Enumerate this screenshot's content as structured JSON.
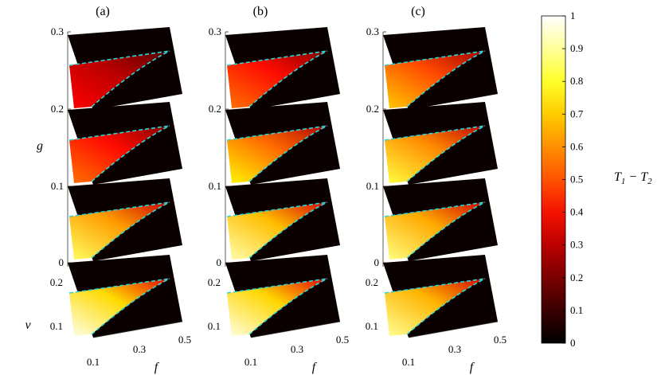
{
  "chart_data": {
    "type": "heatmap",
    "panels": [
      {
        "label": "(a)",
        "slice_intensity": [
          0.38,
          0.55,
          0.85,
          0.98
        ]
      },
      {
        "label": "(b)",
        "slice_intensity": [
          0.55,
          0.75,
          0.92,
          0.97
        ]
      },
      {
        "label": "(c)",
        "slice_intensity": [
          0.68,
          0.82,
          0.88,
          0.9
        ]
      }
    ],
    "g_axis": {
      "label": "g",
      "ticks": [
        "0",
        "0.1",
        "0.2",
        "0.3"
      ],
      "range": [
        0,
        0.3
      ]
    },
    "v_axis": {
      "label": "v",
      "ticks": [
        "0.1",
        "0.2"
      ],
      "range": [
        0.05,
        0.25
      ]
    },
    "f_axis": {
      "label": "f",
      "ticks": [
        "0.1",
        "0.3",
        "0.5"
      ],
      "range": [
        0.1,
        0.5
      ]
    },
    "colorbar": {
      "label_main": "T",
      "label_sub1": "1",
      "label_minus": " − T",
      "label_sub2": "2",
      "range": [
        0,
        1
      ],
      "ticks": [
        "0",
        "0.1",
        "0.2",
        "0.3",
        "0.4",
        "0.5",
        "0.6",
        "0.7",
        "0.8",
        "0.9",
        "1"
      ],
      "colormap": "hot"
    },
    "boundary_color": "#2fd3d6"
  }
}
